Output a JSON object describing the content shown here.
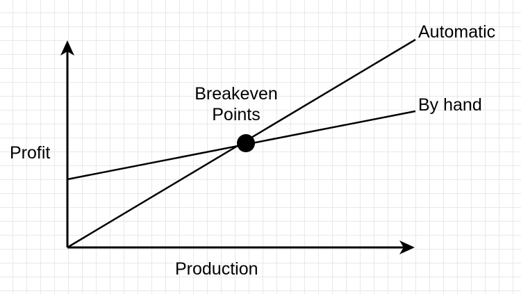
{
  "diagram": {
    "axes": {
      "y_label": "Profit",
      "x_label": "Production"
    },
    "lines": [
      {
        "name": "Automatic"
      },
      {
        "name": "By hand"
      }
    ],
    "breakeven": {
      "line1": "Breakeven",
      "line2": "Points"
    }
  }
}
